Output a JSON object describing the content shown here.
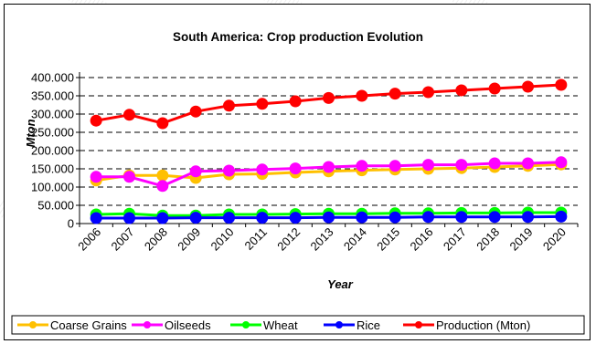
{
  "chart_data": {
    "type": "line",
    "title": "South America: Crop production Evolution",
    "xlabel": "Year",
    "ylabel": "Mton",
    "categories": [
      "2006",
      "2007",
      "2008",
      "2009",
      "2010",
      "2011",
      "2012",
      "2013",
      "2014",
      "2015",
      "2016",
      "2017",
      "2018",
      "2019",
      "2020"
    ],
    "ylim": [
      0,
      400000
    ],
    "yticks": [
      {
        "value": 0,
        "label": "0"
      },
      {
        "value": 50000,
        "label": "50.000"
      },
      {
        "value": 100000,
        "label": "100.000"
      },
      {
        "value": 150000,
        "label": "150.000"
      },
      {
        "value": 200000,
        "label": "200.000"
      },
      {
        "value": 250000,
        "label": "250.000"
      },
      {
        "value": 300000,
        "label": "300.000"
      },
      {
        "value": 350000,
        "label": "350.000"
      },
      {
        "value": 400000,
        "label": "400.000"
      }
    ],
    "grid": true,
    "legend_position": "bottom",
    "series": [
      {
        "name": "Coarse Grains",
        "color": "#FFC000",
        "values": [
          118000,
          132000,
          132000,
          125000,
          135000,
          136000,
          140000,
          143000,
          146000,
          148000,
          150000,
          152000,
          155000,
          158000,
          162000
        ]
      },
      {
        "name": "Oilseeds",
        "color": "#FF00FF",
        "values": [
          128000,
          128000,
          103000,
          143000,
          145000,
          148000,
          151000,
          155000,
          158000,
          158000,
          161000,
          161000,
          165000,
          165000,
          168000
        ]
      },
      {
        "name": "Wheat",
        "color": "#00FF00",
        "values": [
          25000,
          27000,
          22000,
          22000,
          25000,
          25000,
          26000,
          27000,
          27000,
          28000,
          28000,
          29000,
          29000,
          30000,
          30000
        ]
      },
      {
        "name": "Rice",
        "color": "#0000FF",
        "values": [
          15000,
          15000,
          15000,
          16000,
          16000,
          16000,
          16000,
          17000,
          17000,
          17000,
          18000,
          18000,
          18000,
          18000,
          19000
        ]
      },
      {
        "name": "Production (Mton)",
        "color": "#FF0000",
        "values": [
          282000,
          298000,
          275000,
          307000,
          323000,
          328000,
          335000,
          344000,
          350000,
          356000,
          360000,
          365000,
          370000,
          375000,
          380000
        ]
      }
    ]
  }
}
